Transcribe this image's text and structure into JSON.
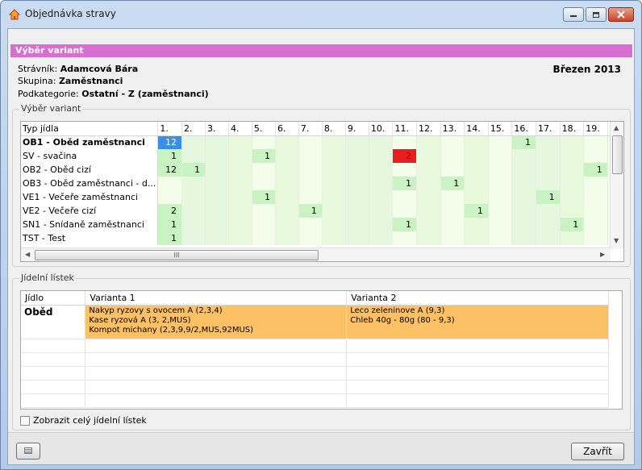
{
  "window": {
    "title": "Objednávka stravy"
  },
  "section_header": "Výběr variant",
  "info": {
    "diner_label": "Strávník:",
    "diner_value": "Adamcová Bára",
    "group_label": "Skupina:",
    "group_value": "Zaměstnanci",
    "subcat_label": "Podkategorie:",
    "subcat_value": "Ostatní - Z (zaměstnanci)",
    "month": "Březen 2013"
  },
  "variants_group": {
    "label": "Výběr variant",
    "header": {
      "type": "Typ jídla",
      "days": [
        "1.",
        "2.",
        "3.",
        "4.",
        "5.",
        "6.",
        "7.",
        "8.",
        "9.",
        "10.",
        "11.",
        "12.",
        "13.",
        "14.",
        "15.",
        "16.",
        "17.",
        "18.",
        "19."
      ]
    },
    "rows": [
      {
        "name": "OB1 - Oběd zaměstnanci",
        "bold": true,
        "cells": [
          "12",
          "",
          "",
          "",
          "",
          "",
          "",
          "",
          "",
          "",
          "",
          "",
          "",
          "",
          "",
          "1",
          "",
          "",
          ""
        ]
      },
      {
        "name": "SV - svačina",
        "cells": [
          "1",
          "",
          "",
          "",
          "1",
          "",
          "",
          "",
          "",
          "",
          "2",
          "",
          "",
          "",
          "",
          "",
          "",
          "",
          ""
        ]
      },
      {
        "name": "OB2 - Oběd cizí",
        "cells": [
          "12",
          "1",
          "",
          "",
          "",
          "",
          "",
          "",
          "",
          "",
          "",
          "",
          "",
          "",
          "",
          "",
          "",
          "",
          "1"
        ]
      },
      {
        "name": "OB3 - Oběd zaměstnanci - d...",
        "cells": [
          "",
          "",
          "",
          "",
          "",
          "",
          "",
          "",
          "",
          "",
          "1",
          "",
          "1",
          "",
          "",
          "",
          "",
          "",
          ""
        ]
      },
      {
        "name": "VE1 - Večeře zaměstnanci",
        "cells": [
          "",
          "",
          "",
          "",
          "1",
          "",
          "",
          "",
          "",
          "",
          "",
          "",
          "",
          "",
          "",
          "",
          "1",
          "",
          ""
        ]
      },
      {
        "name": "VE2 - Večeře cizí",
        "cells": [
          "2",
          "",
          "",
          "",
          "",
          "",
          "1",
          "",
          "",
          "",
          "",
          "",
          "",
          "1",
          "",
          "",
          "",
          "",
          ""
        ]
      },
      {
        "name": "SN1 - Snídaně zaměstnanci",
        "cells": [
          "1",
          "",
          "",
          "",
          "",
          "",
          "",
          "",
          "",
          "",
          "1",
          "",
          "",
          "",
          "",
          "",
          "",
          "1",
          ""
        ]
      },
      {
        "name": "TST - Test",
        "cells": [
          "1",
          "",
          "",
          "",
          "",
          "",
          "",
          "",
          "",
          "",
          "",
          "",
          "",
          "",
          "",
          "",
          "",
          "",
          ""
        ]
      }
    ],
    "hscroll_thumb": "III"
  },
  "menu_group": {
    "label": "Jídelní lístek",
    "columns": [
      "Jídlo",
      "Varianta 1",
      "Varianta 2"
    ],
    "rows": [
      {
        "meal": "Oběd",
        "v1": [
          "Nakyp ryzovy s ovocem A  (2,3,4)",
          "Kase ryzová A  (3, 2,MUS)",
          "Kompot michany (2,3,9,9/2,MUS,92MUS)"
        ],
        "v2": [
          "Leco zeleninove A (9,3)",
          "Chleb 40g - 80g (80 - 9,3)"
        ]
      }
    ]
  },
  "checkbox": {
    "label": "Zobrazit celý jídelní lístek",
    "checked": false
  },
  "footer": {
    "close_label": "Zavřít"
  },
  "colors": {
    "header": "#d86ed2",
    "selected": "#3a8ee6",
    "conflict": "#e81e1e",
    "food_cell": "#fcc165",
    "cell_green": "#c9f3c2"
  }
}
